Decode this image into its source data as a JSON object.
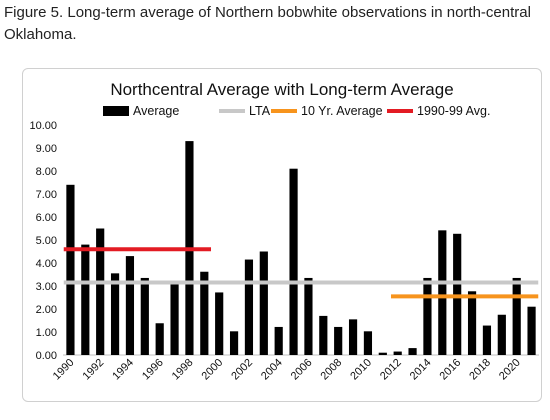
{
  "caption": "Figure 5. Long-term average of Northern bobwhite observations in north-central Oklahoma.",
  "chart_data": {
    "type": "bar",
    "title": "Northcentral Average with Long-term Average",
    "xlabel": "",
    "ylabel": "",
    "ylim": [
      0,
      10
    ],
    "yticks": [
      "0.00",
      "1.00",
      "2.00",
      "3.00",
      "4.00",
      "5.00",
      "6.00",
      "7.00",
      "8.00",
      "9.00",
      "10.00"
    ],
    "categories": [
      1990,
      1991,
      1992,
      1993,
      1994,
      1995,
      1996,
      1997,
      1998,
      1999,
      2000,
      2001,
      2002,
      2003,
      2004,
      2005,
      2006,
      2007,
      2008,
      2009,
      2010,
      2011,
      2012,
      2013,
      2014,
      2015,
      2016,
      2017,
      2018,
      2019,
      2020,
      2021
    ],
    "xtick_labels": [
      "1990",
      "1992",
      "1994",
      "1996",
      "1998",
      "2000",
      "2002",
      "2004",
      "2006",
      "2008",
      "2010",
      "2012",
      "2014",
      "2016",
      "2018",
      "2020"
    ],
    "series": [
      {
        "name": "Average",
        "color": "#000000",
        "values": [
          7.4,
          4.8,
          5.5,
          3.55,
          4.3,
          3.35,
          1.38,
          3.12,
          9.3,
          3.62,
          2.72,
          1.03,
          4.15,
          4.5,
          1.22,
          8.1,
          3.35,
          1.7,
          1.22,
          1.55,
          1.03,
          0.1,
          0.15,
          0.3,
          3.35,
          5.42,
          5.27,
          2.77,
          1.28,
          1.75,
          3.35,
          2.1
        ]
      }
    ],
    "reference_lines": [
      {
        "name": "LTA",
        "color": "#c8c8c8",
        "value": 3.15,
        "from": 1990,
        "to": 2021
      },
      {
        "name": "10 Yr. Average",
        "color": "#f7941d",
        "value": 2.55,
        "from": 2012,
        "to": 2021
      },
      {
        "name": "1990-99 Avg.",
        "color": "#e31b23",
        "value": 4.6,
        "from": 1990,
        "to": 1999
      }
    ],
    "legend_position": "top",
    "grid": false
  }
}
